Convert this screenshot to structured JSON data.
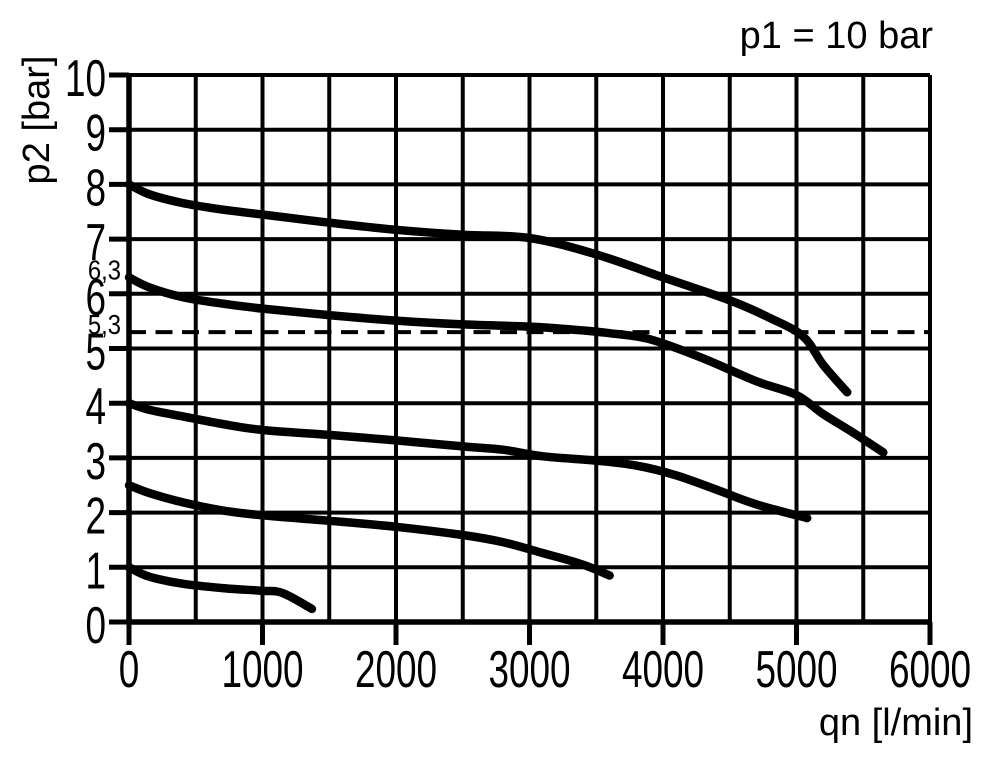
{
  "figure": {
    "kind": "pressure-regulator flow characteristic diagram",
    "background": "#ffffff"
  },
  "colors": {
    "ink": "#000000",
    "background": "#ffffff"
  },
  "chart_data": {
    "type": "line",
    "title": "p1 = 10 bar",
    "xlabel": "qn [l/min]",
    "ylabel": "p2 [bar]",
    "xlim": [
      0,
      6000
    ],
    "ylim": [
      0,
      10
    ],
    "grid": "on",
    "x_grid_step": 500,
    "y_grid_step": 1,
    "x_tick_values": [
      0,
      1000,
      2000,
      3000,
      4000,
      5000,
      6000
    ],
    "x_tick_labels": [
      "0",
      "1000",
      "2000",
      "3000",
      "4000",
      "5000",
      "6000"
    ],
    "y_tick_values": [
      0,
      1,
      2,
      3,
      4,
      5,
      6,
      7,
      8,
      9,
      10
    ],
    "y_tick_labels": [
      "0",
      "1",
      "2",
      "3",
      "4",
      "5",
      "6",
      "7",
      "8",
      "9",
      "10"
    ],
    "y_extra_labels": [
      {
        "text": "6,3",
        "value": 6.3
      },
      {
        "text": "5,3",
        "value": 5.3
      }
    ],
    "reference_line": {
      "value": 5.3,
      "style": "dashed"
    },
    "legend_position": "none",
    "series": [
      {
        "name": "curve start 8,0 bar",
        "points": [
          [
            0,
            8.0
          ],
          [
            150,
            7.82
          ],
          [
            400,
            7.66
          ],
          [
            700,
            7.54
          ],
          [
            1000,
            7.45
          ],
          [
            1500,
            7.3
          ],
          [
            2000,
            7.17
          ],
          [
            2500,
            7.08
          ],
          [
            3000,
            7.02
          ],
          [
            3500,
            6.72
          ],
          [
            4000,
            6.3
          ],
          [
            4500,
            5.88
          ],
          [
            4800,
            5.56
          ],
          [
            5050,
            5.22
          ],
          [
            5200,
            4.7
          ],
          [
            5380,
            4.2
          ]
        ]
      },
      {
        "name": "curve start 6,3 bar",
        "points": [
          [
            0,
            6.3
          ],
          [
            150,
            6.12
          ],
          [
            400,
            5.94
          ],
          [
            700,
            5.82
          ],
          [
            1000,
            5.73
          ],
          [
            1500,
            5.61
          ],
          [
            2000,
            5.51
          ],
          [
            2500,
            5.44
          ],
          [
            3000,
            5.4
          ],
          [
            3300,
            5.35
          ],
          [
            3600,
            5.28
          ],
          [
            3900,
            5.17
          ],
          [
            4300,
            4.82
          ],
          [
            4700,
            4.4
          ],
          [
            5000,
            4.15
          ],
          [
            5200,
            3.8
          ],
          [
            5400,
            3.5
          ],
          [
            5650,
            3.1
          ]
        ]
      },
      {
        "name": "curve start 4,0 bar",
        "points": [
          [
            0,
            4.0
          ],
          [
            150,
            3.88
          ],
          [
            400,
            3.76
          ],
          [
            700,
            3.62
          ],
          [
            1000,
            3.51
          ],
          [
            1500,
            3.42
          ],
          [
            2000,
            3.32
          ],
          [
            2500,
            3.21
          ],
          [
            2800,
            3.15
          ],
          [
            3100,
            3.03
          ],
          [
            3500,
            2.95
          ],
          [
            3800,
            2.86
          ],
          [
            4100,
            2.68
          ],
          [
            4400,
            2.42
          ],
          [
            4700,
            2.15
          ],
          [
            5080,
            1.9
          ]
        ]
      },
      {
        "name": "curve start 2,5 bar",
        "points": [
          [
            0,
            2.5
          ],
          [
            150,
            2.36
          ],
          [
            400,
            2.19
          ],
          [
            700,
            2.04
          ],
          [
            1000,
            1.95
          ],
          [
            1500,
            1.85
          ],
          [
            2000,
            1.74
          ],
          [
            2500,
            1.59
          ],
          [
            2800,
            1.46
          ],
          [
            3100,
            1.26
          ],
          [
            3400,
            1.05
          ],
          [
            3600,
            0.85
          ]
        ]
      },
      {
        "name": "curve start 1,0 bar",
        "points": [
          [
            0,
            1.0
          ],
          [
            150,
            0.83
          ],
          [
            400,
            0.7
          ],
          [
            700,
            0.62
          ],
          [
            1000,
            0.57
          ],
          [
            1150,
            0.53
          ],
          [
            1370,
            0.24
          ]
        ]
      }
    ]
  }
}
